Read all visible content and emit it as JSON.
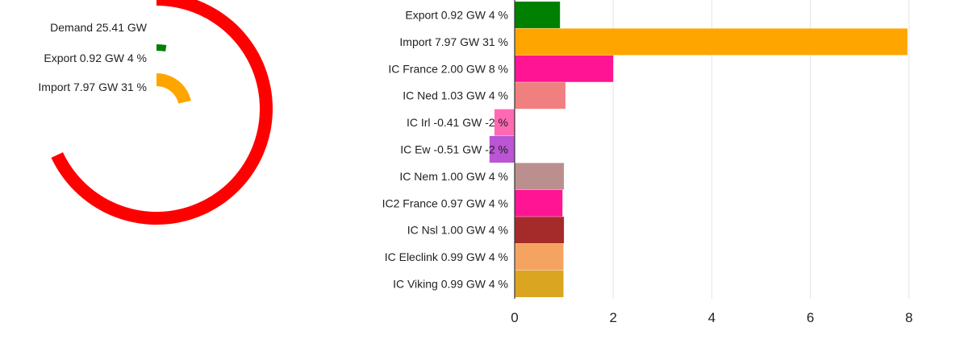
{
  "chart_data": [
    {
      "type": "radial-bar",
      "max_value": 25.41,
      "series": [
        {
          "label": "Demand 25.41 GW",
          "value": 25.41,
          "color": "#ff0000"
        },
        {
          "label": "Export 0.92 GW 4 %",
          "value": 0.92,
          "color": "#008000"
        },
        {
          "label": "Import 7.97 GW 31 %",
          "value": 7.97,
          "color": "#ffa500"
        }
      ]
    },
    {
      "type": "bar",
      "orientation": "horizontal",
      "xlim": [
        0,
        8
      ],
      "xticks": [
        0,
        2,
        4,
        6,
        8
      ],
      "grid": true,
      "categories": [
        "Export 0.92 GW 4 %",
        "Import 7.97 GW 31 %",
        "IC France 2.00 GW 8 %",
        "IC Ned 1.03 GW 4 %",
        "IC Irl -0.41 GW -2 %",
        "IC Ew -0.51 GW -2 %",
        "IC Nem 1.00 GW 4 %",
        "IC2 France 0.97 GW 4 %",
        "IC Nsl 1.00 GW 4 %",
        "IC Eleclink 0.99 GW 4 %",
        "IC Viking 0.99 GW 4 %"
      ],
      "values": [
        0.92,
        7.97,
        2.0,
        1.03,
        -0.41,
        -0.51,
        1.0,
        0.97,
        1.0,
        0.99,
        0.99
      ],
      "colors": [
        "#008000",
        "#ffa500",
        "#ff1493",
        "#f08080",
        "#ff69b4",
        "#ba55d3",
        "#bc8f8f",
        "#ff1493",
        "#a52a2a",
        "#f4a460",
        "#daa520"
      ]
    }
  ]
}
